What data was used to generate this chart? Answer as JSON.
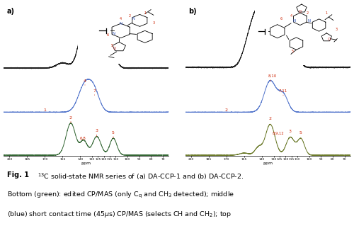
{
  "fig_width": 5.0,
  "fig_height": 3.19,
  "dpi": 100,
  "background_color": "#ffffff",
  "colors": {
    "black": "#1a1a1a",
    "blue": "#5577cc",
    "green": "#336633",
    "olive": "#6b7a2a",
    "red_label": "#cc2200"
  },
  "xmin": 200,
  "xmax": 68,
  "caption_line1": "Fig. 1",
  "caption_line1_rest": "  ¹³C solid-state NMR series of (a) DA-CCP-1 and (b) DA-CCP-2.",
  "caption_line2": "Bottom (green): edited CP/MAS (only Cⁱ and CH₃ detected); middle",
  "caption_line3": "(blue) short contact time (45μs) CP/MAS (selects CH and CH₂); top"
}
